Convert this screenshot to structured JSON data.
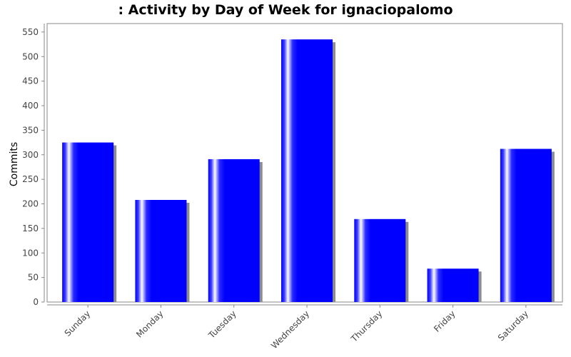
{
  "chart_data": {
    "type": "bar",
    "title": ": Activity by Day of Week for ignaciopalomo",
    "xlabel": "",
    "ylabel": "Commits",
    "categories": [
      "Sunday",
      "Monday",
      "Tuesday",
      "Wednesday",
      "Thursday",
      "Friday",
      "Saturday"
    ],
    "values": [
      325,
      208,
      291,
      535,
      169,
      68,
      312
    ],
    "ylim": [
      0,
      560
    ],
    "yticks": [
      0,
      50,
      100,
      150,
      200,
      250,
      300,
      350,
      400,
      450,
      500,
      550
    ],
    "grid": false,
    "legend": "none",
    "bar_color": "#0000ff",
    "shadow_color": "#8c8c8c"
  }
}
